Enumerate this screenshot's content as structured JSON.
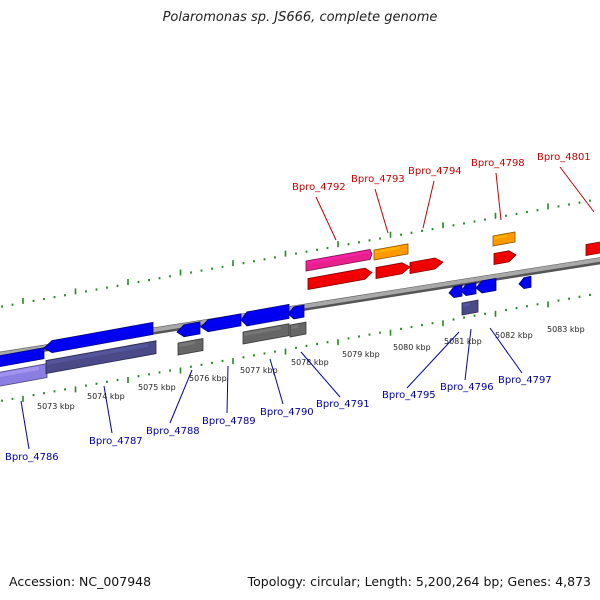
{
  "header": {
    "title": "Polaromonas sp. JS666, complete genome"
  },
  "footer": {
    "accession": "Accession: NC_007948",
    "summary": "Topology: circular; Length: 5,200,264 bp; Genes: 4,873"
  },
  "colors": {
    "reverse_strand_gene": "#0000ee",
    "forward_strand_gene": "#ee0000",
    "label_reverse": "#0000aa",
    "label_forward": "#cc0000",
    "tick": "#228b22",
    "backbone": "#8c8c8c",
    "gene_pink": "#e8208e",
    "gene_orange": "#ff9900",
    "gene_grey": "#666666",
    "gene_slate": "#4a4a88",
    "gene_lavender": "#8a7ee0"
  },
  "scale": {
    "unit": "kbp",
    "labels": [
      "5073 kbp",
      "5074 kbp",
      "5075 kbp",
      "5076 kbp",
      "5077 kbp",
      "5078 kbp",
      "5079 kbp",
      "5080 kbp",
      "5081 kbp",
      "5082 kbp",
      "5083 kbp"
    ]
  },
  "genes": {
    "forward_strand": [
      "Bpro_4792",
      "Bpro_4793",
      "Bpro_4794",
      "Bpro_4798",
      "Bpro_4801"
    ],
    "reverse_strand": [
      "Bpro_4786",
      "Bpro_4787",
      "Bpro_4788",
      "Bpro_4789",
      "Bpro_4790",
      "Bpro_4791",
      "Bpro_4795",
      "Bpro_4796",
      "Bpro_4797"
    ]
  }
}
